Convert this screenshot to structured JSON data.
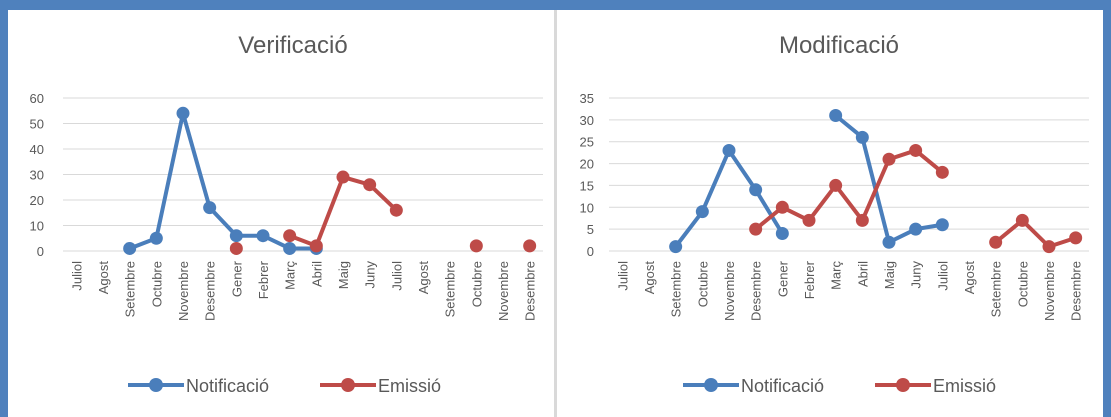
{
  "colors": {
    "frame": "#4f81bd",
    "notificacio": "#4a7ebb",
    "emissio": "#be4b48",
    "grid": "#d9d9d9",
    "text": "#595959"
  },
  "chart_data": [
    {
      "type": "line",
      "title": "Verificació",
      "categories": [
        "Juliol",
        "Agost",
        "Setembre",
        "Octubre",
        "Novembre",
        "Desembre",
        "Gener",
        "Febrer",
        "Març",
        "Abril",
        "Maig",
        "Juny",
        "Juliol",
        "Agost",
        "Setembre",
        "Octubre",
        "Novembre",
        "Desembre"
      ],
      "yticks": [
        0,
        10,
        20,
        30,
        40,
        50,
        60
      ],
      "ylim": [
        0,
        60
      ],
      "grid": true,
      "legend_position": "bottom",
      "series": [
        {
          "name": "Notificació",
          "values": [
            null,
            null,
            1,
            5,
            54,
            17,
            6,
            6,
            1,
            1,
            null,
            null,
            null,
            null,
            null,
            null,
            null,
            null
          ]
        },
        {
          "name": "Emissió",
          "values": [
            null,
            null,
            null,
            null,
            null,
            null,
            1,
            null,
            6,
            2,
            29,
            26,
            16,
            null,
            null,
            2,
            null,
            2
          ]
        }
      ]
    },
    {
      "type": "line",
      "title": "Modificació",
      "categories": [
        "Juliol",
        "Agost",
        "Setembre",
        "Octubre",
        "Novembre",
        "Desembre",
        "Gener",
        "Febrer",
        "Març",
        "Abril",
        "Maig",
        "Juny",
        "Juliol",
        "Agost",
        "Setembre",
        "Octubre",
        "Novembre",
        "Desembre"
      ],
      "yticks": [
        0,
        5,
        10,
        15,
        20,
        25,
        30,
        35
      ],
      "ylim": [
        0,
        35
      ],
      "grid": true,
      "legend_position": "bottom",
      "series": [
        {
          "name": "Notificació",
          "values": [
            null,
            null,
            1,
            9,
            23,
            14,
            4,
            null,
            31,
            26,
            2,
            5,
            6,
            null,
            null,
            null,
            null,
            null
          ]
        },
        {
          "name": "Emissió",
          "values": [
            null,
            null,
            null,
            null,
            null,
            5,
            10,
            7,
            15,
            7,
            21,
            23,
            18,
            null,
            2,
            7,
            1,
            3
          ]
        }
      ]
    }
  ]
}
